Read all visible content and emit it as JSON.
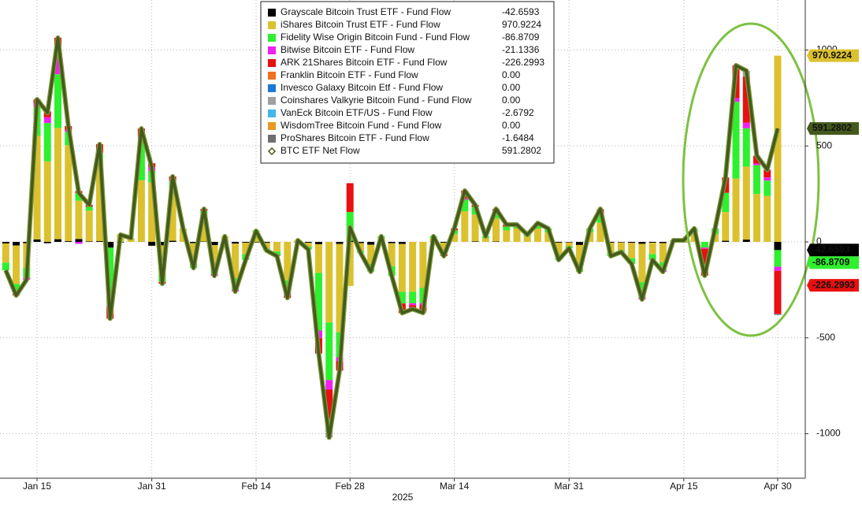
{
  "chart_data": {
    "type": "bar",
    "xlabel": "2025",
    "categories": [
      null,
      null,
      null,
      "Jan 15",
      null,
      null,
      null,
      null,
      null,
      null,
      null,
      null,
      null,
      null,
      "Jan 31",
      null,
      null,
      null,
      null,
      null,
      null,
      null,
      null,
      null,
      "Feb 14",
      null,
      null,
      null,
      null,
      null,
      null,
      null,
      null,
      "Feb 28",
      null,
      null,
      null,
      null,
      null,
      null,
      null,
      null,
      null,
      "Mar 14",
      null,
      null,
      null,
      null,
      null,
      null,
      null,
      null,
      null,
      null,
      "Mar 31",
      null,
      null,
      null,
      null,
      null,
      null,
      null,
      null,
      null,
      null,
      "Apr 15",
      null,
      null,
      null,
      null,
      null,
      null,
      null,
      null,
      "Apr 30"
    ],
    "ylim": [
      -1232,
      1261
    ],
    "yticks": [
      -1000,
      -500,
      0,
      500,
      1000
    ],
    "grid": true,
    "series": [
      {
        "name": "Grayscale Bitcoin Trust ETF - Fund Flow",
        "color": "#000000",
        "legend_label": "-42.6593",
        "callout": true,
        "values": [
          -8,
          -19,
          -7,
          13,
          -7,
          14,
          4,
          15,
          3,
          4,
          -30,
          -3,
          0,
          1,
          -20,
          -18,
          6,
          0,
          -6,
          2,
          -17,
          4,
          -9,
          -4,
          -3,
          -5,
          0,
          0,
          -2,
          -5,
          -12,
          0,
          -11,
          6,
          -6,
          -15,
          -1,
          -7,
          -11,
          0,
          0,
          -1,
          -4,
          0,
          0,
          3,
          0,
          2,
          0,
          0,
          0,
          0,
          0,
          -4,
          -3,
          -16,
          0,
          0,
          -4,
          -3,
          -5,
          -10,
          -4,
          -6,
          0,
          -2,
          0,
          0,
          0,
          6,
          0,
          12,
          0,
          0,
          -42.6593
        ]
      },
      {
        "name": "iShares Bitcoin Trust ETF - Fund Flow",
        "color": "#dcc12f",
        "legend_label": "970.9224",
        "callout": true,
        "values": [
          -100,
          -200,
          -130,
          540,
          420,
          580,
          500,
          200,
          160,
          400,
          0,
          40,
          20,
          320,
          310,
          -150,
          250,
          70,
          -100,
          140,
          -120,
          25,
          -180,
          -60,
          50,
          -30,
          -50,
          -200,
          10,
          -20,
          -150,
          -420,
          -460,
          -230,
          -40,
          -100,
          20,
          -120,
          -250,
          -260,
          -240,
          20,
          -40,
          40,
          160,
          140,
          20,
          120,
          60,
          70,
          30,
          70,
          50,
          -60,
          -20,
          -100,
          50,
          100,
          -50,
          -40,
          -80,
          -200,
          -60,
          -100,
          5,
          10,
          50,
          0,
          40,
          150,
          330,
          380,
          250,
          240,
          970.9224
        ]
      },
      {
        "name": "Fidelity Wise Origin Bitcoin Fund - Fund Flow",
        "color": "#2ef02e",
        "legend_label": "-86.8709",
        "callout": true,
        "values": [
          -40,
          -50,
          -50,
          150,
          200,
          280,
          70,
          40,
          20,
          60,
          -300,
          0,
          0,
          220,
          60,
          -40,
          60,
          0,
          -30,
          20,
          -30,
          0,
          -60,
          -30,
          10,
          -10,
          -20,
          -60,
          0,
          -15,
          -300,
          -300,
          -130,
          150,
          -10,
          -40,
          10,
          -50,
          -60,
          -60,
          -80,
          10,
          -20,
          20,
          60,
          40,
          9,
          40,
          20,
          20,
          7,
          20,
          20,
          -30,
          -10,
          -40,
          20,
          40,
          -20,
          -10,
          -30,
          -80,
          -30,
          -40,
          3,
          0,
          20,
          -30,
          30,
          100,
          400,
          200,
          150,
          80,
          -86.8709
        ]
      },
      {
        "name": "Bitwise Bitcoin ETF - Fund Flow",
        "color": "#f020f0",
        "legend_label": "-21.1336",
        "values": [
          0,
          0,
          -10,
          20,
          30,
          150,
          10,
          -10,
          0,
          5,
          -10,
          0,
          0,
          10,
          20,
          0,
          5,
          0,
          0,
          0,
          -10,
          0,
          -10,
          0,
          0,
          0,
          -4,
          -20,
          0,
          0,
          -40,
          -50,
          -20,
          0,
          0,
          0,
          0,
          0,
          0,
          -10,
          -10,
          0,
          0,
          0,
          7,
          0,
          0,
          0,
          0,
          0,
          0,
          0,
          0,
          0,
          0,
          0,
          0,
          0,
          0,
          0,
          0,
          -10,
          0,
          -10,
          0,
          0,
          0,
          -6,
          0,
          0,
          20,
          30,
          9,
          16,
          -21.1336
        ]
      },
      {
        "name": "ARK 21Shares Bitcoin ETF - Fund Flow",
        "color": "#e81010",
        "legend_label": "-226.2993",
        "callout": true,
        "values": [
          0,
          -10,
          0,
          20,
          30,
          40,
          20,
          10,
          10,
          40,
          -60,
          0,
          0,
          40,
          20,
          -10,
          20,
          0,
          0,
          10,
          0,
          0,
          0,
          0,
          0,
          0,
          0,
          -12,
          0,
          0,
          -80,
          -150,
          -50,
          150,
          0,
          0,
          0,
          0,
          -50,
          -20,
          -30,
          0,
          -10,
          10,
          40,
          10,
          0,
          10,
          10,
          0,
          0,
          8,
          0,
          0,
          0,
          0,
          0,
          30,
          0,
          0,
          0,
          0,
          0,
          0,
          0,
          0,
          0,
          -140,
          0,
          80,
          170,
          240,
          40,
          40,
          -226.2993
        ]
      },
      {
        "name": "Franklin Bitcoin ETF - Fund Flow",
        "color": "#f07020",
        "legend_label": "0.00",
        "values": [
          0,
          0,
          0,
          0,
          0,
          0,
          0,
          0,
          0,
          0,
          0,
          0,
          0,
          0,
          0,
          0,
          0,
          0,
          0,
          0,
          0,
          0,
          0,
          0,
          0,
          0,
          0,
          0,
          0,
          0,
          0,
          -30,
          0,
          0,
          0,
          0,
          0,
          0,
          0,
          0,
          0,
          0,
          0,
          0,
          0,
          0,
          0,
          0,
          0,
          0,
          0,
          0,
          0,
          0,
          0,
          0,
          0,
          0,
          0,
          0,
          0,
          0,
          0,
          0,
          0,
          0,
          0,
          0,
          0,
          0,
          0,
          0,
          0,
          0,
          0
        ]
      },
      {
        "name": "Invesco Galaxy Bitcoin Etf - Fund Flow",
        "color": "#1e78d8",
        "legend_label": "0.00",
        "values": [
          0,
          0,
          0,
          0,
          0,
          0,
          0,
          0,
          0,
          0,
          0,
          0,
          0,
          0,
          0,
          0,
          0,
          0,
          0,
          0,
          0,
          0,
          0,
          0,
          0,
          0,
          0,
          0,
          0,
          0,
          0,
          -40,
          0,
          0,
          0,
          0,
          0,
          0,
          0,
          0,
          0,
          0,
          0,
          0,
          0,
          0,
          0,
          0,
          0,
          0,
          0,
          0,
          0,
          0,
          0,
          0,
          0,
          0,
          0,
          0,
          0,
          0,
          0,
          0,
          0,
          0,
          0,
          0,
          0,
          0,
          0,
          0,
          0,
          0,
          0
        ]
      },
      {
        "name": "Coinshares Valkyrie Bitcoin Fund - Fund Flow",
        "color": "#a0a0a0",
        "legend_label": "0.00",
        "values": [
          0,
          0,
          0,
          0,
          0,
          0,
          0,
          0,
          0,
          0,
          0,
          0,
          0,
          0,
          0,
          0,
          0,
          0,
          0,
          0,
          0,
          0,
          0,
          0,
          0,
          0,
          0,
          0,
          0,
          0,
          0,
          -30,
          0,
          0,
          0,
          0,
          0,
          0,
          0,
          0,
          -10,
          0,
          0,
          0,
          0,
          0,
          0,
          0,
          0,
          0,
          0,
          0,
          0,
          0,
          0,
          0,
          0,
          2,
          0,
          0,
          0,
          0,
          0,
          0,
          0,
          0,
          0,
          0,
          0,
          0,
          0,
          30,
          0,
          0,
          0
        ]
      },
      {
        "name": "VanEck Bitcoin ETF/US - Fund Flow",
        "color": "#40b8e8",
        "legend_label": "-2.6792",
        "values": [
          0,
          0,
          0,
          0,
          0,
          0,
          0,
          0,
          0,
          0,
          0,
          0,
          0,
          0,
          0,
          0,
          0,
          0,
          0,
          0,
          0,
          0,
          0,
          0,
          0,
          0,
          0,
          0,
          0,
          0,
          0,
          0,
          0,
          0,
          0,
          0,
          0,
          0,
          0,
          0,
          0,
          0,
          0,
          0,
          0,
          0,
          0,
          0,
          0,
          0,
          0,
          0,
          0,
          0,
          0,
          0,
          0,
          0,
          0,
          0,
          0,
          0,
          0,
          0,
          0,
          0,
          0,
          0,
          0,
          0,
          0,
          0,
          0,
          0,
          -2.6792
        ]
      },
      {
        "name": "WisdomTree Bitcoin Fund - Fund Flow",
        "color": "#e89a20",
        "legend_label": "0.00",
        "values": [
          0,
          0,
          0,
          0,
          0,
          0,
          0,
          0,
          0,
          0,
          0,
          0,
          0,
          0,
          0,
          0,
          0,
          0,
          0,
          0,
          0,
          0,
          0,
          0,
          0,
          0,
          0,
          0,
          0,
          0,
          0,
          0,
          0,
          0,
          0,
          0,
          0,
          0,
          0,
          0,
          0,
          0,
          0,
          0,
          0,
          0,
          0,
          0,
          0,
          0,
          0,
          0,
          0,
          0,
          0,
          0,
          0,
          0,
          0,
          0,
          0,
          0,
          0,
          0,
          0,
          0,
          0,
          0,
          0,
          0,
          0,
          0,
          0,
          0,
          0
        ]
      },
      {
        "name": "ProShares Bitcoin ETF - Fund Flow",
        "color": "#6e6e6e",
        "legend_label": "-1.6484",
        "values": [
          0,
          0,
          0,
          0,
          0,
          0,
          0,
          0,
          0,
          0,
          0,
          0,
          0,
          0,
          0,
          0,
          0,
          0,
          0,
          0,
          0,
          0,
          0,
          0,
          0,
          0,
          0,
          0,
          0,
          0,
          0,
          0,
          0,
          0,
          0,
          0,
          0,
          0,
          0,
          0,
          0,
          0,
          0,
          0,
          0,
          0,
          0,
          0,
          0,
          0,
          0,
          0,
          0,
          0,
          0,
          0,
          0,
          0,
          0,
          0,
          0,
          0,
          0,
          0,
          0,
          0,
          0,
          0,
          0,
          0,
          0,
          0,
          0,
          0,
          -1.6484
        ]
      },
      {
        "name": "BTC ETF Net Flow",
        "type": "line",
        "color": "#44591c",
        "legend_label": "591.2802",
        "callout": true,
        "values": [
          -148,
          -279,
          -197,
          743,
          673,
          1064,
          604,
          255,
          193,
          509,
          -400,
          37,
          20,
          591,
          390,
          -218,
          341,
          70,
          -136,
          172,
          -177,
          29,
          -259,
          -94,
          57,
          -45,
          -74,
          -292,
          8,
          -40,
          -582,
          -1020,
          -671,
          76,
          -56,
          -155,
          29,
          -177,
          -371,
          -350,
          -370,
          29,
          -74,
          70,
          267,
          193,
          29,
          172,
          90,
          90,
          37,
          98,
          70,
          -94,
          -33,
          -156,
          70,
          172,
          -74,
          -53,
          -115,
          -300,
          -94,
          -156,
          8,
          8,
          70,
          -176,
          70,
          336,
          920,
          892,
          449,
          376,
          591.2802
        ]
      }
    ]
  }
}
